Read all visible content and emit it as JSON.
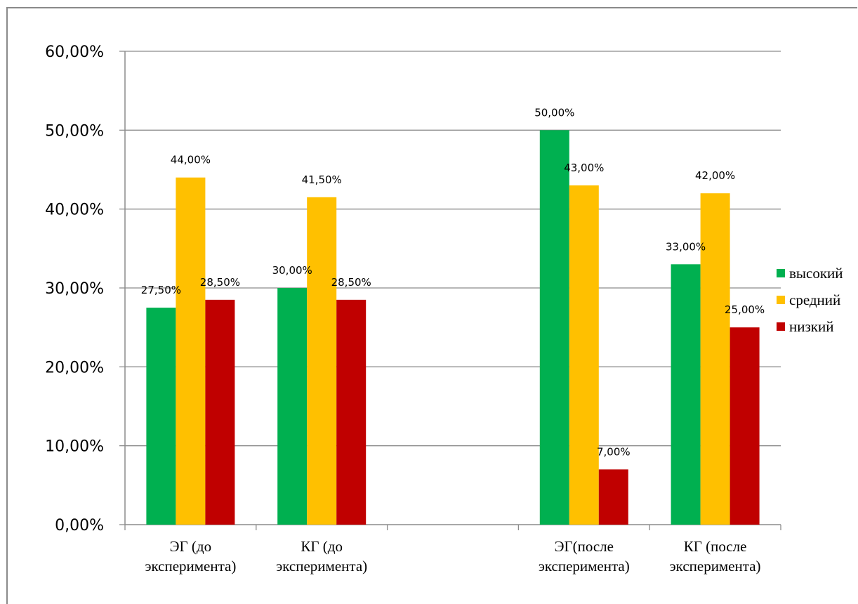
{
  "chart_data": {
    "type": "bar",
    "title": "",
    "xlabel": "",
    "ylabel": "",
    "ylim": [
      0,
      0.6
    ],
    "y_ticks": [
      "0,00%",
      "10,00%",
      "20,00%",
      "30,00%",
      "40,00%",
      "50,00%",
      "60,00%"
    ],
    "y_tick_values": [
      0,
      0.1,
      0.2,
      0.3,
      0.4,
      0.5,
      0.6
    ],
    "grid": "horizontal",
    "legend_position": "right",
    "categories": [
      [
        "ЭГ (до",
        "эксперимента)"
      ],
      [
        "КГ (до",
        "эксперимента)"
      ],
      [],
      [
        "ЭГ(после",
        "эксперимента)"
      ],
      [
        "КГ (после",
        "эксперимента)"
      ]
    ],
    "series": [
      {
        "name": "высокий",
        "color": "#00b050",
        "values": [
          0.275,
          0.3,
          null,
          0.5,
          0.33
        ],
        "labels": [
          "27,50%",
          "30,00%",
          "",
          "50,00%",
          "33,00%"
        ]
      },
      {
        "name": "средний",
        "color": "#ffc000",
        "values": [
          0.44,
          0.415,
          null,
          0.43,
          0.42
        ],
        "labels": [
          "44,00%",
          "41,50%",
          "",
          "43,00%",
          "42,00%"
        ]
      },
      {
        "name": "низкий",
        "color": "#c00000",
        "values": [
          0.285,
          0.285,
          null,
          0.07,
          0.25
        ],
        "labels": [
          "28,50%",
          "28,50%",
          "",
          "7,00%",
          "25,00%"
        ]
      }
    ]
  }
}
